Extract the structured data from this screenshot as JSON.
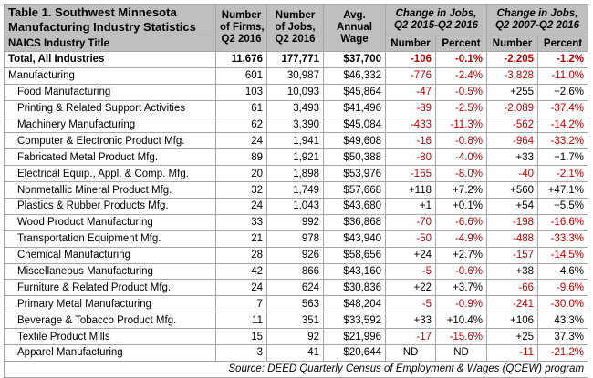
{
  "table": {
    "title_line1": "Table 1. Southwest Minnesota",
    "title_line2": "Manufacturing Industry Statistics",
    "naics_label": "NAICS Industry Title",
    "col_firms": [
      "Number",
      "of Firms,",
      "Q2 2016"
    ],
    "col_jobs": [
      "Number",
      "of Jobs,",
      "Q2 2016"
    ],
    "col_wage": [
      "Avg.",
      "Annual",
      "Wage"
    ],
    "group1": [
      "Change in Jobs,",
      "Q2 2015-Q2 2016"
    ],
    "group2": [
      "Change in Jobs,",
      "Q2 2007-Q2 2016"
    ],
    "sub_number": "Number",
    "sub_percent": "Percent",
    "rows": [
      {
        "name": "Total, All Industries",
        "firms": "11,676",
        "jobs": "177,771",
        "wage": "$37,700",
        "n1": "-106",
        "p1": "-0.1%",
        "n2": "-2,205",
        "p2": "-1.2%",
        "total": true
      },
      {
        "name": "Manufacturing",
        "firms": "601",
        "jobs": "30,987",
        "wage": "$46,332",
        "n1": "-776",
        "p1": "-2.4%",
        "n2": "-3,828",
        "p2": "-11.0%"
      },
      {
        "name": "Food Manufacturing",
        "firms": "103",
        "jobs": "10,093",
        "wage": "$45,864",
        "n1": "-47",
        "p1": "-0.5%",
        "n2": "+255",
        "p2": "+2.6%",
        "sub": true
      },
      {
        "name": "Printing & Related Support Activities",
        "firms": "61",
        "jobs": "3,493",
        "wage": "$41,496",
        "n1": "-89",
        "p1": "-2.5%",
        "n2": "-2,089",
        "p2": "-37.4%",
        "sub": true
      },
      {
        "name": "Machinery Manufacturing",
        "firms": "62",
        "jobs": "3,390",
        "wage": "$45,084",
        "n1": "-433",
        "p1": "-11.3%",
        "n2": "-562",
        "p2": "-14.2%",
        "sub": true
      },
      {
        "name": "Computer & Electronic Product Mfg.",
        "firms": "24",
        "jobs": "1,941",
        "wage": "$49,608",
        "n1": "-16",
        "p1": "-0.8%",
        "n2": "-964",
        "p2": "-33.2%",
        "sub": true
      },
      {
        "name": "Fabricated Metal Product Mfg.",
        "firms": "89",
        "jobs": "1,921",
        "wage": "$50,388",
        "n1": "-80",
        "p1": "-4.0%",
        "n2": "+33",
        "p2": "+1.7%",
        "sub": true
      },
      {
        "name": "Electrical Equip., Appl. & Comp. Mfg.",
        "firms": "20",
        "jobs": "1,898",
        "wage": "$53,976",
        "n1": "-165",
        "p1": "-8.0%",
        "n2": "-40",
        "p2": "-2.1%",
        "sub": true
      },
      {
        "name": "Nonmetallic Mineral Product Mfg.",
        "firms": "32",
        "jobs": "1,749",
        "wage": "$57,668",
        "n1": "+118",
        "p1": "+7.2%",
        "n2": "+560",
        "p2": "+47.1%",
        "sub": true
      },
      {
        "name": "Plastics & Rubber Products Mfg.",
        "firms": "24",
        "jobs": "1,043",
        "wage": "$43,680",
        "n1": "+1",
        "p1": "+0.1%",
        "n2": "+54",
        "p2": "+5.5%",
        "sub": true
      },
      {
        "name": "Wood Product Manufacturing",
        "firms": "33",
        "jobs": "992",
        "wage": "$36,868",
        "n1": "-70",
        "p1": "-6.6%",
        "n2": "-198",
        "p2": "-16.6%",
        "sub": true
      },
      {
        "name": "Transportation Equipment Mfg.",
        "firms": "21",
        "jobs": "978",
        "wage": "$43,940",
        "n1": "-50",
        "p1": "-4.9%",
        "n2": "-488",
        "p2": "-33.3%",
        "sub": true
      },
      {
        "name": "Chemical Manufacturing",
        "firms": "28",
        "jobs": "926",
        "wage": "$58,656",
        "n1": "+24",
        "p1": "+2.7%",
        "n2": "-157",
        "p2": "-14.5%",
        "sub": true
      },
      {
        "name": "Miscellaneous Manufacturing",
        "firms": "42",
        "jobs": "866",
        "wage": "$43,160",
        "n1": "-5",
        "p1": "-0.6%",
        "n2": "+38",
        "p2": "4.6%",
        "sub": true
      },
      {
        "name": "Furniture & Related Product Mfg.",
        "firms": "24",
        "jobs": "624",
        "wage": "$30,836",
        "n1": "+22",
        "p1": "+3.7%",
        "n2": "-66",
        "p2": "-9.6%",
        "sub": true
      },
      {
        "name": "Primary Metal Manufacturing",
        "firms": "7",
        "jobs": "563",
        "wage": "$48,204",
        "n1": "-5",
        "p1": "-0.9%",
        "n2": "-241",
        "p2": "-30.0%",
        "sub": true
      },
      {
        "name": "Beverage & Tobacco Product Mfg.",
        "firms": "11",
        "jobs": "351",
        "wage": "$33,592",
        "n1": "+33",
        "p1": "+10.4%",
        "n2": "+106",
        "p2": "43.3%",
        "sub": true
      },
      {
        "name": "Textile Product Mills",
        "firms": "15",
        "jobs": "92",
        "wage": "$21,996",
        "n1": "-17",
        "p1": "-15.6%",
        "n2": "+25",
        "p2": "37.3%",
        "sub": true
      },
      {
        "name": "Apparel Manufacturing",
        "firms": "3",
        "jobs": "41",
        "wage": "$20,644",
        "n1": "ND",
        "p1": "ND",
        "n2": "-11",
        "p2": "-21.2%",
        "sub": true
      }
    ],
    "source": "Source: DEED Quarterly Census of Employment & Wages (QCEW) program"
  },
  "colors": {
    "header_bg": "#bfbfbf",
    "negative": "#c00000",
    "border": "#a6a6a6"
  }
}
